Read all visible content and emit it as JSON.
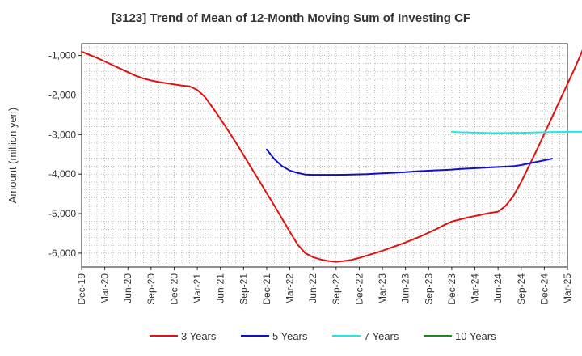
{
  "chart_data": {
    "type": "line",
    "title": "[3123]  Trend of Mean of 12-Month Moving Sum of Investing CF",
    "ylabel": "Amount (million yen)",
    "xlabel": "",
    "ylim": [
      -6350,
      -700
    ],
    "yticks": [
      -6000,
      -5000,
      -4000,
      -3000,
      -2000,
      -1000
    ],
    "ytick_labels": [
      "-6,000",
      "-5,000",
      "-4,000",
      "-3,000",
      "-2,000",
      "-1,000"
    ],
    "xtick_labels": [
      "Dec-19",
      "Mar-20",
      "Jun-20",
      "Sep-20",
      "Dec-20",
      "Mar-21",
      "Jun-21",
      "Sep-21",
      "Dec-21",
      "Mar-22",
      "Jun-22",
      "Sep-22",
      "Dec-22",
      "Mar-23",
      "Jun-23",
      "Sep-23",
      "Dec-23",
      "Mar-24",
      "Jun-24",
      "Sep-24",
      "Dec-24",
      "Mar-25"
    ],
    "grid": true,
    "legend_position": "bottom",
    "series": [
      {
        "name": "3 Years",
        "color": "#e0120f",
        "start_month_index": 0,
        "values": [
          -900,
          -980,
          -1060,
          -1150,
          -1240,
          -1330,
          -1420,
          -1510,
          -1580,
          -1630,
          -1670,
          -1700,
          -1730,
          -1760,
          -1780,
          -1870,
          -2050,
          -2320,
          -2600,
          -2900,
          -3200,
          -3520,
          -3840,
          -4160,
          -4480,
          -4800,
          -5130,
          -5460,
          -5780,
          -6000,
          -6100,
          -6160,
          -6200,
          -6220,
          -6200,
          -6170,
          -6120,
          -6060,
          -6000,
          -5940,
          -5870,
          -5800,
          -5730,
          -5650,
          -5570,
          -5480,
          -5390,
          -5290,
          -5200,
          -5150,
          -5100,
          -5060,
          -5020,
          -4980,
          -4950,
          -4800,
          -4550,
          -4200,
          -3800,
          -3400,
          -2980,
          -2560,
          -2140,
          -1720,
          -1300,
          -850
        ]
      },
      {
        "name": "5 Years",
        "color": "#1010c8",
        "start_month_index": 24,
        "values": [
          -3380,
          -3620,
          -3800,
          -3910,
          -3970,
          -4010,
          -4020,
          -4020,
          -4020,
          -4020,
          -4015,
          -4010,
          -4005,
          -4000,
          -3990,
          -3980,
          -3970,
          -3960,
          -3950,
          -3935,
          -3925,
          -3915,
          -3905,
          -3895,
          -3885,
          -3870,
          -3860,
          -3850,
          -3840,
          -3830,
          -3820,
          -3810,
          -3800,
          -3770,
          -3730,
          -3690,
          -3650,
          -3610
        ]
      },
      {
        "name": "7 Years",
        "color": "#20e8e8",
        "start_month_index": 48,
        "values": [
          -2930,
          -2940,
          -2945,
          -2950,
          -2955,
          -2960,
          -2960,
          -2960,
          -2955,
          -2955,
          -2950,
          -2945,
          -2940,
          -2935,
          -2935,
          -2930,
          -2930,
          -2930
        ]
      },
      {
        "name": "10 Years",
        "color": "#1a8a1a",
        "start_month_index": 0,
        "values": []
      }
    ]
  }
}
